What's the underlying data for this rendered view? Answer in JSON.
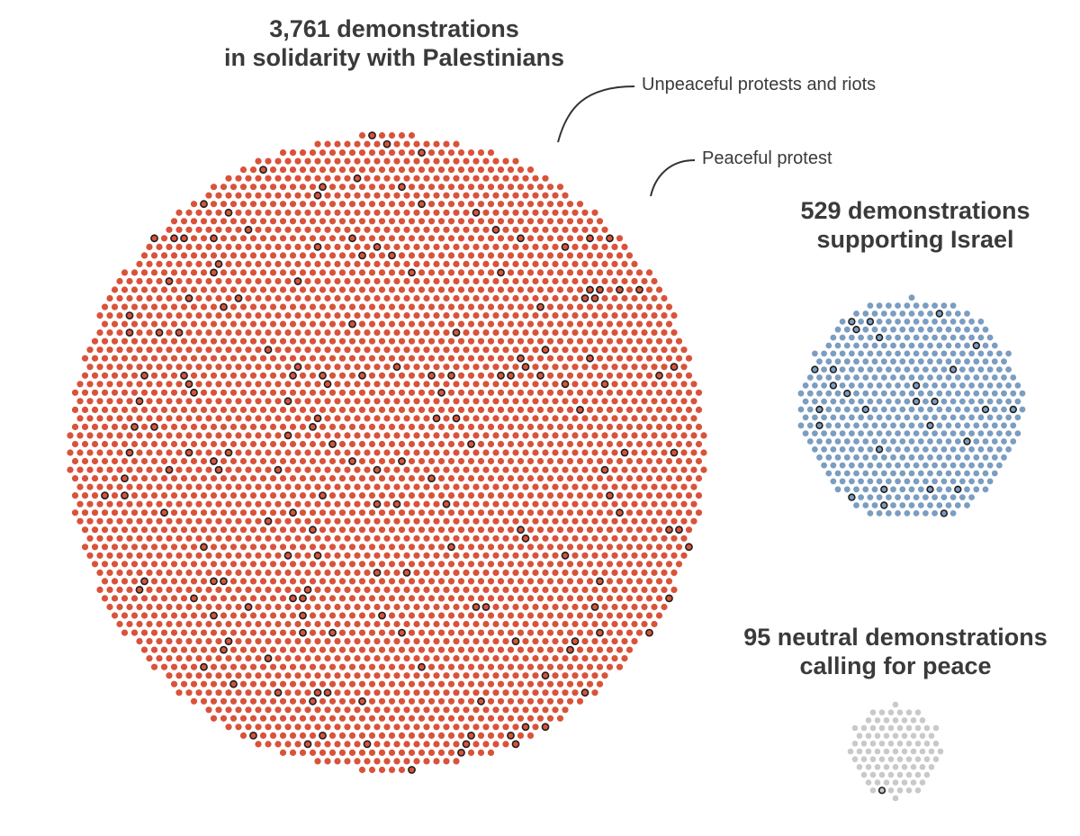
{
  "chart_data": {
    "type": "scatter",
    "chart_kind": "dot cluster (unit chart)",
    "colors": {
      "palestinian": "#d9533a",
      "israel": "#7b9dc2",
      "peace": "#c9c9c9",
      "unpeaceful_outline": "#1e1e1e"
    },
    "groups": [
      {
        "id": "palestinian",
        "title_lines": [
          "3,761 demonstrations",
          "in solidarity with Palestinians"
        ],
        "count": 3761,
        "unpeaceful_marked": 176
      },
      {
        "id": "israel",
        "title_lines": [
          "529 demonstrations",
          "supporting Israel"
        ],
        "count": 529,
        "unpeaceful_marked": 28
      },
      {
        "id": "peace",
        "title_lines": [
          "95 neutral demonstrations",
          "calling for peace"
        ],
        "count": 95,
        "unpeaceful_marked": 1
      }
    ],
    "legend": {
      "unpeaceful": "Unpeaceful protests and riots",
      "peaceful": "Peaceful protest"
    }
  }
}
